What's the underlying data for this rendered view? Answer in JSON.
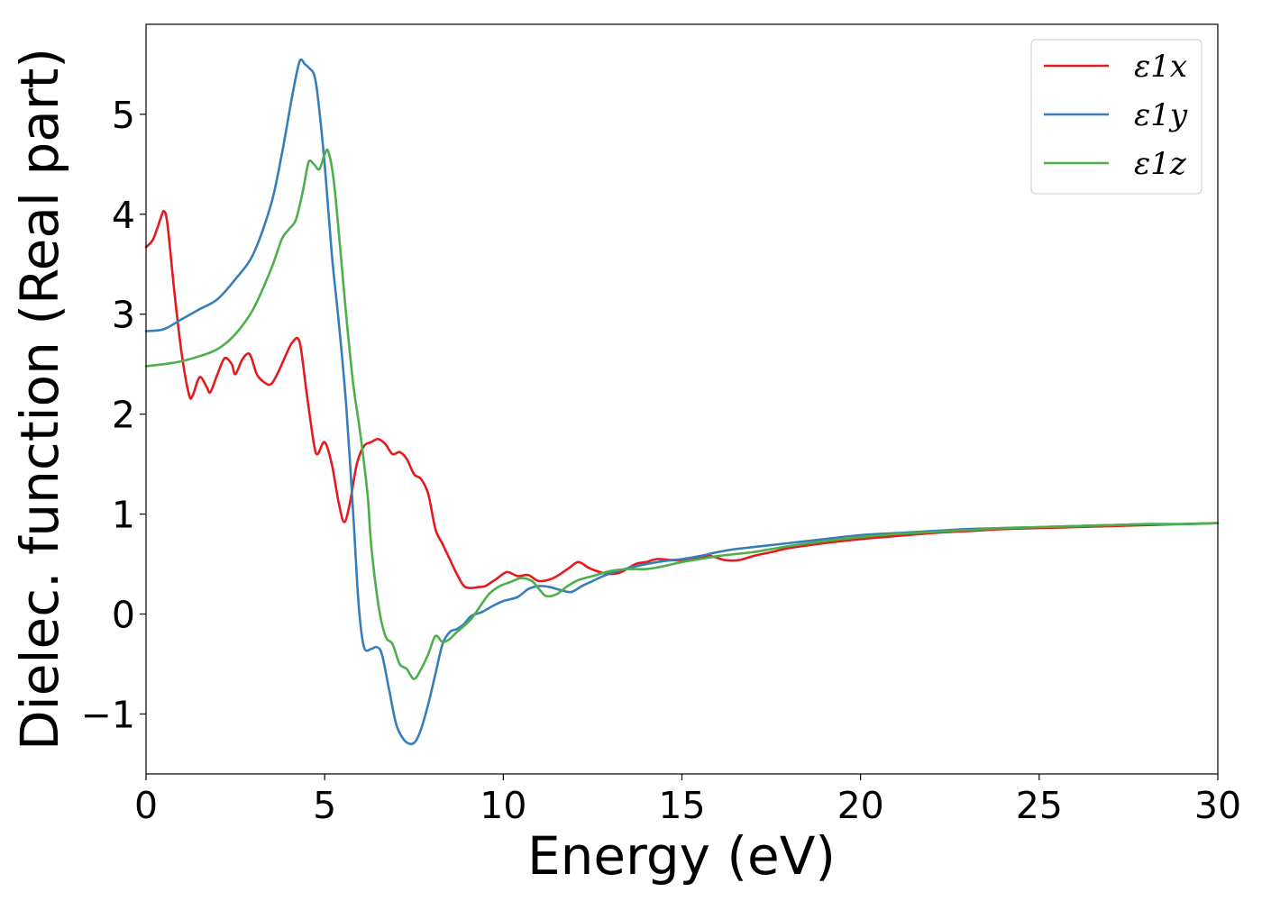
{
  "chart_data": {
    "type": "line",
    "title": "",
    "xlabel": "Energy (eV)",
    "ylabel": "Dielec. function (Real part)",
    "xlim": [
      0,
      30
    ],
    "ylim": [
      -1.6,
      5.9
    ],
    "xticks": [
      0,
      5,
      10,
      15,
      20,
      25,
      30
    ],
    "xtick_labels": [
      "0",
      "5",
      "10",
      "15",
      "20",
      "25",
      "30"
    ],
    "yticks": [
      -1,
      0,
      1,
      2,
      3,
      4,
      5
    ],
    "ytick_labels": [
      "−1",
      "0",
      "1",
      "2",
      "3",
      "4",
      "5"
    ],
    "grid": false,
    "legend_position": "top-right",
    "series": [
      {
        "name": "ε1x",
        "color": "#e41a1c",
        "x": [
          0,
          0.2,
          0.4,
          0.5,
          0.6,
          0.8,
          1.0,
          1.2,
          1.3,
          1.5,
          1.7,
          1.8,
          2.0,
          2.2,
          2.4,
          2.5,
          2.7,
          2.9,
          3.1,
          3.3,
          3.5,
          3.7,
          3.9,
          4.1,
          4.3,
          4.5,
          4.7,
          4.8,
          5.0,
          5.2,
          5.4,
          5.55,
          5.7,
          5.9,
          6.1,
          6.3,
          6.5,
          6.7,
          6.9,
          7.1,
          7.3,
          7.5,
          7.7,
          7.9,
          8.1,
          8.3,
          8.5,
          8.7,
          8.9,
          9.1,
          9.3,
          9.5,
          9.8,
          10.1,
          10.4,
          10.7,
          11.0,
          11.4,
          11.8,
          12.1,
          12.4,
          12.7,
          13.0,
          13.3,
          13.7,
          14.0,
          14.3,
          14.7,
          15.0,
          15.4,
          15.8,
          16.2,
          16.6,
          17.0,
          17.5,
          18.0,
          19.0,
          20.0,
          21.0,
          22.0,
          23.0,
          24.0,
          25.0,
          26.0,
          27.0,
          28.0,
          29.0,
          30.0
        ],
        "values": [
          3.67,
          3.75,
          3.95,
          4.03,
          3.9,
          3.2,
          2.6,
          2.2,
          2.18,
          2.37,
          2.27,
          2.22,
          2.4,
          2.56,
          2.5,
          2.4,
          2.55,
          2.6,
          2.4,
          2.32,
          2.3,
          2.42,
          2.58,
          2.72,
          2.72,
          2.2,
          1.7,
          1.6,
          1.72,
          1.5,
          1.1,
          0.92,
          1.1,
          1.5,
          1.68,
          1.72,
          1.75,
          1.7,
          1.6,
          1.62,
          1.55,
          1.4,
          1.35,
          1.2,
          0.85,
          0.7,
          0.55,
          0.4,
          0.28,
          0.26,
          0.27,
          0.28,
          0.35,
          0.42,
          0.38,
          0.39,
          0.33,
          0.36,
          0.45,
          0.52,
          0.46,
          0.42,
          0.4,
          0.42,
          0.5,
          0.52,
          0.55,
          0.54,
          0.54,
          0.56,
          0.58,
          0.54,
          0.54,
          0.58,
          0.62,
          0.66,
          0.71,
          0.75,
          0.78,
          0.81,
          0.83,
          0.85,
          0.86,
          0.87,
          0.88,
          0.89,
          0.9,
          0.91
        ]
      },
      {
        "name": "ε1y",
        "color": "#377eb8",
        "x": [
          0,
          0.5,
          1.0,
          1.5,
          2.0,
          2.5,
          3.0,
          3.5,
          3.8,
          4.1,
          4.3,
          4.45,
          4.6,
          4.7,
          4.8,
          5.0,
          5.2,
          5.4,
          5.6,
          5.8,
          5.95,
          6.1,
          6.3,
          6.45,
          6.6,
          6.8,
          7.0,
          7.2,
          7.4,
          7.55,
          7.7,
          7.9,
          8.1,
          8.3,
          8.5,
          8.7,
          8.9,
          9.1,
          9.4,
          9.7,
          10.0,
          10.4,
          10.7,
          11.0,
          11.3,
          11.6,
          11.9,
          12.2,
          12.5,
          12.8,
          13.1,
          13.5,
          14.0,
          14.5,
          15.0,
          15.5,
          16.0,
          16.5,
          17.0,
          17.5,
          18.0,
          19.0,
          20.0,
          21.0,
          22.0,
          23.0,
          24.0,
          25.0,
          26.0,
          27.0,
          28.0,
          29.0,
          30.0
        ],
        "values": [
          2.83,
          2.85,
          2.95,
          3.05,
          3.15,
          3.35,
          3.6,
          4.1,
          4.6,
          5.2,
          5.53,
          5.5,
          5.45,
          5.4,
          5.2,
          4.5,
          3.6,
          2.9,
          2.1,
          1.0,
          0.1,
          -0.33,
          -0.35,
          -0.33,
          -0.4,
          -0.75,
          -1.1,
          -1.25,
          -1.3,
          -1.27,
          -1.15,
          -0.9,
          -0.6,
          -0.3,
          -0.18,
          -0.15,
          -0.1,
          -0.02,
          0.02,
          0.08,
          0.13,
          0.17,
          0.25,
          0.28,
          0.27,
          0.24,
          0.22,
          0.28,
          0.33,
          0.38,
          0.42,
          0.46,
          0.5,
          0.53,
          0.55,
          0.58,
          0.62,
          0.65,
          0.67,
          0.69,
          0.71,
          0.75,
          0.79,
          0.81,
          0.83,
          0.85,
          0.86,
          0.87,
          0.88,
          0.89,
          0.9,
          0.9,
          0.91
        ]
      },
      {
        "name": "ε1z",
        "color": "#4daf4a",
        "x": [
          0,
          0.5,
          1.0,
          1.5,
          2.0,
          2.5,
          3.0,
          3.5,
          3.8,
          4.0,
          4.2,
          4.4,
          4.55,
          4.7,
          4.85,
          5.0,
          5.1,
          5.25,
          5.4,
          5.6,
          5.8,
          6.0,
          6.2,
          6.3,
          6.5,
          6.7,
          6.9,
          7.1,
          7.3,
          7.5,
          7.7,
          7.9,
          8.1,
          8.3,
          8.5,
          8.7,
          8.9,
          9.1,
          9.3,
          9.6,
          9.9,
          10.2,
          10.5,
          10.8,
          11.0,
          11.2,
          11.5,
          11.8,
          12.1,
          12.5,
          13.0,
          13.5,
          14.0,
          14.5,
          15.0,
          15.5,
          16.0,
          16.5,
          17.0,
          17.5,
          18.0,
          19.0,
          20.0,
          21.0,
          22.0,
          23.0,
          24.0,
          25.0,
          26.0,
          27.0,
          28.0,
          29.0,
          30.0
        ],
        "values": [
          2.48,
          2.5,
          2.53,
          2.58,
          2.65,
          2.8,
          3.05,
          3.45,
          3.75,
          3.85,
          3.95,
          4.25,
          4.52,
          4.5,
          4.45,
          4.6,
          4.63,
          4.35,
          3.8,
          3.0,
          2.3,
          1.8,
          1.2,
          0.7,
          0.1,
          -0.22,
          -0.3,
          -0.5,
          -0.55,
          -0.65,
          -0.55,
          -0.4,
          -0.22,
          -0.28,
          -0.25,
          -0.18,
          -0.12,
          -0.05,
          0.05,
          0.2,
          0.28,
          0.32,
          0.36,
          0.33,
          0.25,
          0.18,
          0.2,
          0.28,
          0.34,
          0.38,
          0.43,
          0.45,
          0.45,
          0.48,
          0.52,
          0.55,
          0.58,
          0.6,
          0.62,
          0.65,
          0.68,
          0.73,
          0.77,
          0.8,
          0.82,
          0.84,
          0.86,
          0.87,
          0.88,
          0.89,
          0.9,
          0.9,
          0.91
        ]
      }
    ]
  }
}
